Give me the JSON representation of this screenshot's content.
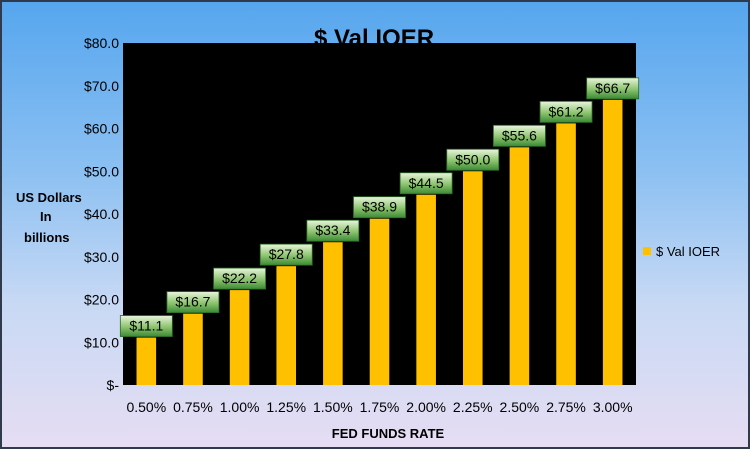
{
  "chart_data": {
    "type": "bar",
    "title": "$ Val IOER",
    "xlabel": "FED FUNDS RATE",
    "ylabel": [
      "US Dollars",
      "In",
      "billions"
    ],
    "categories": [
      "0.50%",
      "0.75%",
      "1.00%",
      "1.25%",
      "1.50%",
      "1.75%",
      "2.00%",
      "2.25%",
      "2.50%",
      "2.75%",
      "3.00%"
    ],
    "series": [
      {
        "name": "$ Val IOER",
        "values": [
          11.1,
          16.7,
          22.2,
          27.8,
          33.4,
          38.9,
          44.5,
          50.0,
          55.6,
          61.2,
          66.7
        ],
        "labels": [
          "$11.1",
          "$16.7",
          "$22.2",
          "$27.8",
          "$33.4",
          "$38.9",
          "$44.5",
          "$50.0",
          "$55.6",
          "$61.2",
          "$66.7"
        ],
        "color": "#ffc000"
      }
    ],
    "ylim": [
      0,
      80
    ],
    "yticks": [
      0,
      10,
      20,
      30,
      40,
      50,
      60,
      70,
      80
    ],
    "ytick_labels": [
      "$-",
      "$10.0",
      "$20.0",
      "$30.0",
      "$40.0",
      "$50.0",
      "$60.0",
      "$70.0",
      "$80.0"
    ],
    "legend_position": "right",
    "plot_background": "#000000",
    "label_box_color": "#3d8a35",
    "grid": false
  }
}
